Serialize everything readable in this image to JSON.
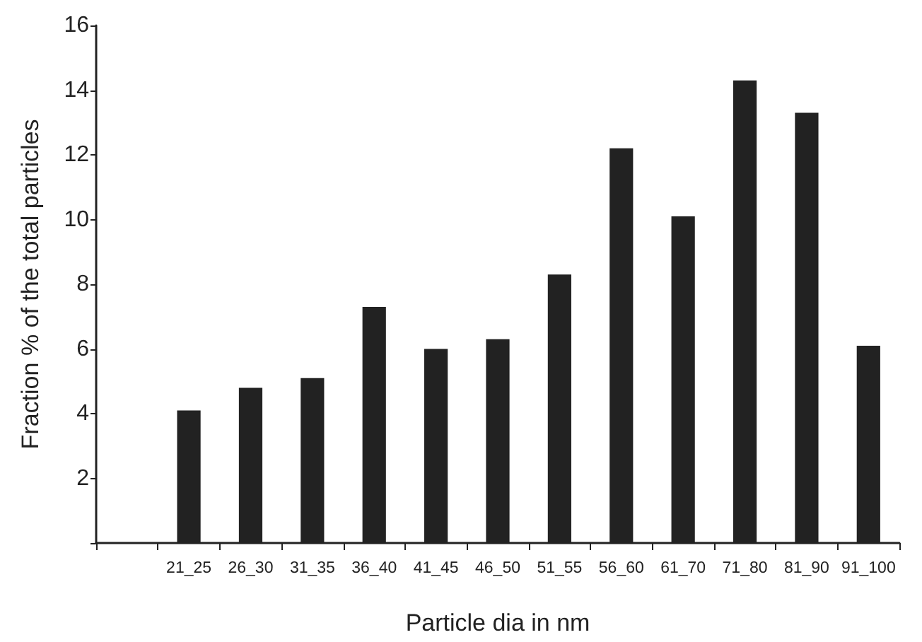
{
  "chart_data": {
    "type": "bar",
    "xlabel": "Particle dia in nm",
    "ylabel": "Fraction % of the total particles",
    "categories": [
      null,
      "21_25",
      "26_30",
      "31_35",
      "36_40",
      "41_45",
      "46_50",
      "51_55",
      "56_60",
      "61_70",
      "71_80",
      "81_90",
      "91_100"
    ],
    "values": [
      null,
      4.1,
      4.8,
      5.1,
      7.3,
      6.0,
      6.3,
      8.3,
      12.2,
      10.1,
      14.3,
      13.3,
      6.1
    ],
    "color": "#222222",
    "ylim": [
      0,
      16
    ],
    "yticks": [
      {
        "value": 0,
        "label": null
      },
      2,
      4,
      6,
      8,
      10,
      12,
      14,
      16
    ],
    "grid": false
  }
}
